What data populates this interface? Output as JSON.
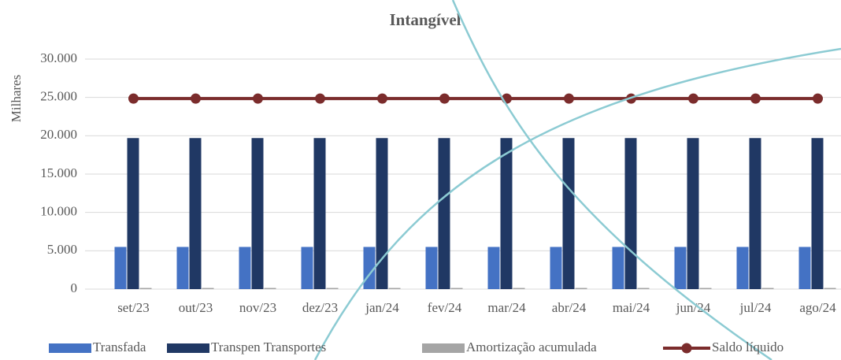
{
  "chart_data": {
    "type": "bar-line",
    "title": "Intangível",
    "y_axis_label": "Milhares",
    "categories": [
      "set/23",
      "out/23",
      "nov/23",
      "dez/23",
      "jan/24",
      "fev/24",
      "mar/24",
      "abr/24",
      "mai/24",
      "jun/24",
      "jul/24",
      "ago/24"
    ],
    "series": [
      {
        "name": "Transfada",
        "type": "bar",
        "color": "#4472c4",
        "values": [
          5500,
          5500,
          5500,
          5500,
          5500,
          5500,
          5500,
          5500,
          5500,
          5500,
          5500,
          5500
        ]
      },
      {
        "name": "Transpen Transportes",
        "type": "bar",
        "color": "#203864",
        "values": [
          19700,
          19700,
          19700,
          19700,
          19700,
          19700,
          19700,
          19700,
          19700,
          19700,
          19700,
          19700
        ]
      },
      {
        "name": "Amortização acumulada",
        "type": "bar",
        "color": "#a5a5a5",
        "values": [
          150,
          150,
          150,
          150,
          150,
          150,
          150,
          150,
          150,
          150,
          150,
          150
        ]
      },
      {
        "name": "Saldo líquido",
        "type": "line",
        "color": "#7b2c2c",
        "values": [
          24850,
          24850,
          24850,
          24850,
          24850,
          24850,
          24850,
          24850,
          24850,
          24850,
          24850,
          24850
        ]
      }
    ],
    "ylim": [
      0,
      30000
    ],
    "yticks": [
      0,
      {
        "value": 5000,
        "label": "5.000"
      },
      {
        "value": 10000,
        "label": "10.000"
      },
      {
        "value": 15000,
        "label": "15.000"
      },
      {
        "value": 20000,
        "label": "20.000"
      },
      {
        "value": 25000,
        "label": "25.000"
      },
      {
        "value": 30000,
        "label": "30.000"
      }
    ],
    "grid": true,
    "legend": "bottom"
  }
}
